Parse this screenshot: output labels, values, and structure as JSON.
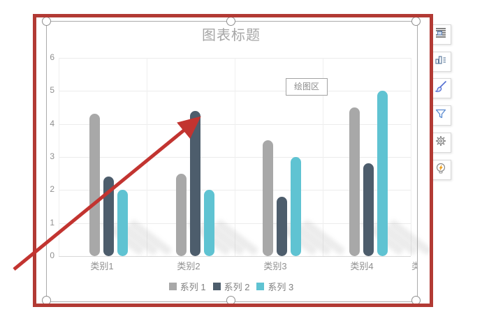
{
  "chart_data": {
    "type": "bar",
    "title": "图表标题",
    "categories": [
      "类别1",
      "类别2",
      "类别3",
      "类别4"
    ],
    "series": [
      {
        "name": "系列 1",
        "color": "#a8a8a8",
        "values": [
          4.3,
          2.5,
          3.5,
          4.5
        ]
      },
      {
        "name": "系列 2",
        "color": "#4d5d6c",
        "values": [
          2.4,
          4.4,
          1.8,
          2.8
        ]
      },
      {
        "name": "系列 3",
        "color": "#5fc3d2",
        "values": [
          2.0,
          2.0,
          3.0,
          5.0
        ]
      }
    ],
    "ylim": [
      0,
      6
    ],
    "yticks": [
      0,
      1,
      2,
      3,
      4,
      5,
      6
    ],
    "grid": true,
    "legend_position": "bottom"
  },
  "chart": {
    "title": "图表标题",
    "plot_area_label": "绘图区",
    "clipped_category_label": "类"
  },
  "toolbar": {
    "buttons": [
      {
        "label": "chart-elements",
        "icon": "chart-elements-icon"
      },
      {
        "label": "chart-style",
        "icon": "chart-style-icon"
      },
      {
        "label": "chart-format-brush",
        "icon": "paintbrush-icon"
      },
      {
        "label": "chart-filter",
        "icon": "funnel-icon"
      },
      {
        "label": "chart-settings",
        "icon": "gear-icon"
      },
      {
        "label": "chart-recommend",
        "icon": "lightbulb-icon"
      }
    ]
  },
  "annotation": {
    "border_color": "#b23a34",
    "arrow_color": "#c23430"
  }
}
